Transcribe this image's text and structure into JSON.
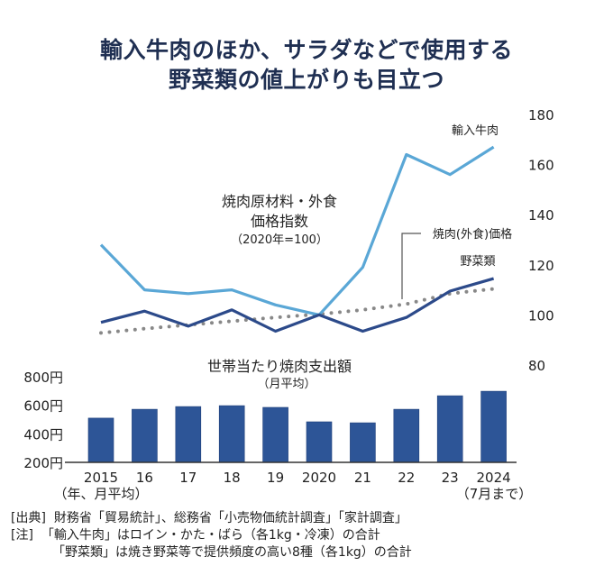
{
  "title": {
    "line1": "輸入牛肉のほか、サラダなどで使用する",
    "line2": "野菜類の値上がりも目立つ"
  },
  "chart_data": [
    {
      "type": "line",
      "title": "焼肉原材料・外食価格指数",
      "title_line1": "焼肉原材料・外食",
      "title_line2": "価格指数",
      "subtitle": "（2020年=100）",
      "x": [
        "2015",
        "16",
        "17",
        "18",
        "19",
        "2020",
        "21",
        "22",
        "23",
        "2024"
      ],
      "ylim": [
        80,
        180
      ],
      "yticks": [
        180,
        160,
        140,
        120,
        100,
        80
      ],
      "yaxis_side": "right",
      "grid": false,
      "series": [
        {
          "name": "輸入牛肉",
          "style": "solid",
          "color": "#5aa7d6",
          "values": [
            128,
            110,
            108.5,
            110,
            104,
            100,
            119,
            164,
            156,
            167
          ]
        },
        {
          "name": "野菜類",
          "style": "solid",
          "color": "#2c4a8a",
          "values": [
            97,
            101.5,
            95.5,
            102,
            93.5,
            100,
            93.5,
            99,
            109.5,
            114.5
          ]
        },
        {
          "name": "焼肉(外食)価格",
          "style": "dotted",
          "color": "#888888",
          "values": [
            92.8,
            94.5,
            96,
            97.5,
            99,
            100.3,
            102,
            104.3,
            108.5,
            110.4
          ]
        }
      ]
    },
    {
      "type": "bar",
      "title": "世帯当たり焼肉支出額",
      "subtitle": "（月平均）",
      "categories": [
        "2015",
        "16",
        "17",
        "18",
        "19",
        "2020",
        "21",
        "22",
        "23",
        "2024"
      ],
      "values": [
        510,
        572,
        591,
        597,
        585,
        484,
        477,
        572,
        667,
        698
      ],
      "ylim": [
        200,
        800
      ],
      "yticks": [
        "800円",
        "600円",
        "400円",
        "200円"
      ],
      "ytick_values": [
        800,
        600,
        400,
        200
      ],
      "color": "#2d5597",
      "xlabel_note_left": "（年、月平均）",
      "xlabel_note_right": "（7月まで）"
    }
  ],
  "notes": {
    "source": "[出典]  財務省「貿易統計」、総務省「小売物価統計調査」「家計調査」",
    "note1": "[注]  「輸入牛肉」はロイン・かた・ばら（各1kg・冷凍）の合計",
    "note2": "「野菜類」は焼き野菜等で提供頻度の高い8種（各1kg）の合計"
  }
}
